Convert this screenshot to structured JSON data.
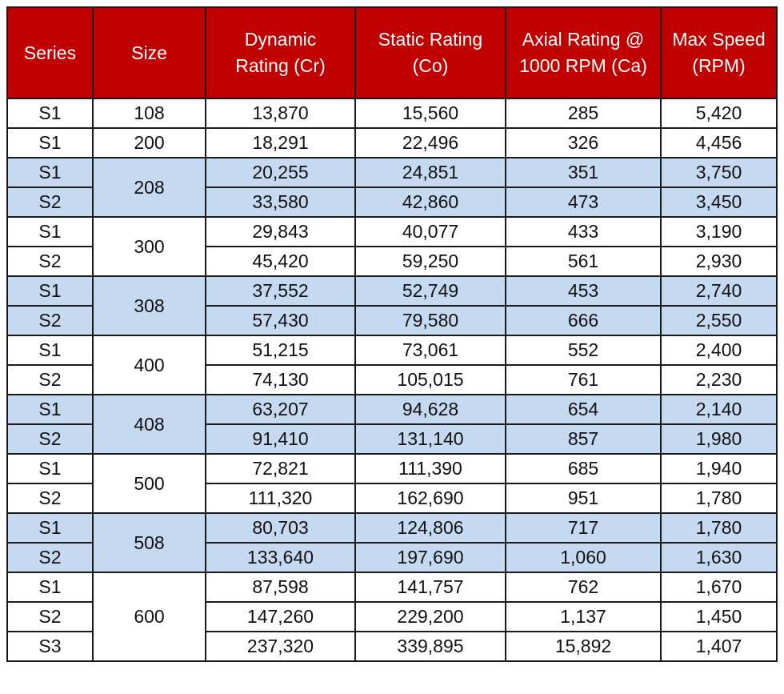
{
  "table": {
    "headers": [
      "Series",
      "Size",
      "Dynamic Rating (Cr)",
      "Static Rating (Co)",
      "Axial Rating @ 1000 RPM (Ca)",
      "Max Speed (RPM)"
    ],
    "header_lines": [
      [
        "Series"
      ],
      [
        "Size"
      ],
      [
        "Dynamic",
        "Rating (Cr)"
      ],
      [
        "Static Rating",
        "(Co)"
      ],
      [
        "Axial Rating @",
        "1000 RPM (Ca)"
      ],
      [
        "Max Speed",
        "(RPM)"
      ]
    ],
    "groups": [
      {
        "size": "108",
        "shaded": false,
        "rows": [
          {
            "series": "S1",
            "dynamic": "13,870",
            "static": "15,560",
            "axial": "285",
            "speed": "5,420"
          }
        ]
      },
      {
        "size": "200",
        "shaded": false,
        "rows": [
          {
            "series": "S1",
            "dynamic": "18,291",
            "static": "22,496",
            "axial": "326",
            "speed": "4,456"
          }
        ]
      },
      {
        "size": "208",
        "shaded": true,
        "rows": [
          {
            "series": "S1",
            "dynamic": "20,255",
            "static": "24,851",
            "axial": "351",
            "speed": "3,750"
          },
          {
            "series": "S2",
            "dynamic": "33,580",
            "static": "42,860",
            "axial": "473",
            "speed": "3,450"
          }
        ]
      },
      {
        "size": "300",
        "shaded": false,
        "rows": [
          {
            "series": "S1",
            "dynamic": "29,843",
            "static": "40,077",
            "axial": "433",
            "speed": "3,190"
          },
          {
            "series": "S2",
            "dynamic": "45,420",
            "static": "59,250",
            "axial": "561",
            "speed": "2,930"
          }
        ]
      },
      {
        "size": "308",
        "shaded": true,
        "rows": [
          {
            "series": "S1",
            "dynamic": "37,552",
            "static": "52,749",
            "axial": "453",
            "speed": "2,740"
          },
          {
            "series": "S2",
            "dynamic": "57,430",
            "static": "79,580",
            "axial": "666",
            "speed": "2,550"
          }
        ]
      },
      {
        "size": "400",
        "shaded": false,
        "rows": [
          {
            "series": "S1",
            "dynamic": "51,215",
            "static": "73,061",
            "axial": "552",
            "speed": "2,400"
          },
          {
            "series": "S2",
            "dynamic": "74,130",
            "static": "105,015",
            "axial": "761",
            "speed": "2,230"
          }
        ]
      },
      {
        "size": "408",
        "shaded": true,
        "rows": [
          {
            "series": "S1",
            "dynamic": "63,207",
            "static": "94,628",
            "axial": "654",
            "speed": "2,140"
          },
          {
            "series": "S2",
            "dynamic": "91,410",
            "static": "131,140",
            "axial": "857",
            "speed": "1,980"
          }
        ]
      },
      {
        "size": "500",
        "shaded": false,
        "rows": [
          {
            "series": "S1",
            "dynamic": "72,821",
            "static": "111,390",
            "axial": "685",
            "speed": "1,940"
          },
          {
            "series": "S2",
            "dynamic": "111,320",
            "static": "162,690",
            "axial": "951",
            "speed": "1,780"
          }
        ]
      },
      {
        "size": "508",
        "shaded": true,
        "rows": [
          {
            "series": "S1",
            "dynamic": "80,703",
            "static": "124,806",
            "axial": "717",
            "speed": "1,780"
          },
          {
            "series": "S2",
            "dynamic": "133,640",
            "static": "197,690",
            "axial": "1,060",
            "speed": "1,630"
          }
        ]
      },
      {
        "size": "600",
        "shaded": false,
        "rows": [
          {
            "series": "S1",
            "dynamic": "87,598",
            "static": "141,757",
            "axial": "762",
            "speed": "1,670"
          },
          {
            "series": "S2",
            "dynamic": "147,260",
            "static": "229,200",
            "axial": "1,137",
            "speed": "1,450"
          },
          {
            "series": "S3",
            "dynamic": "237,320",
            "static": "339,895",
            "axial": "15,892",
            "speed": "1,407"
          }
        ]
      }
    ]
  },
  "colors": {
    "header_bg": "#c00000",
    "header_text": "#ffffff",
    "shaded_row_bg": "#c5d9f1",
    "border": "#1a1a1a"
  }
}
